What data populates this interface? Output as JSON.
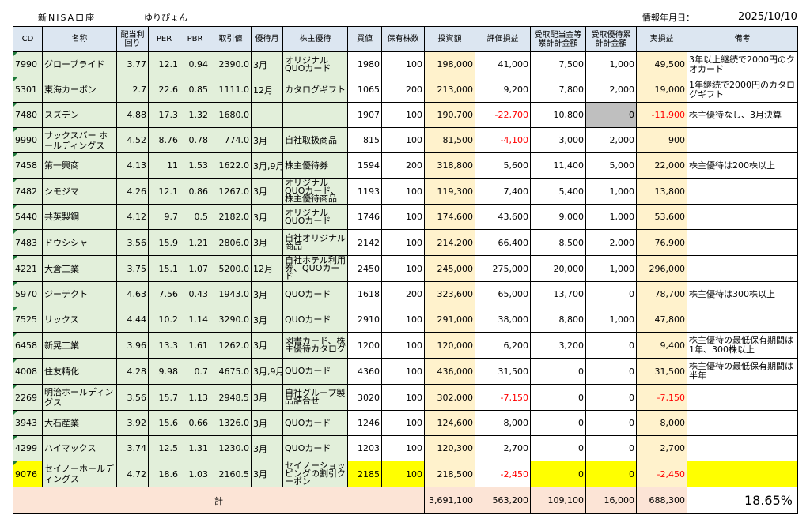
{
  "header": {
    "account": "新NISA口座",
    "user": "ゆりぴょん",
    "info_label": "情報年月日：",
    "date": "2025/10/10"
  },
  "columns": [
    "CD",
    "名称",
    "配当利回り",
    "PER",
    "PBR",
    "取引値",
    "優待月",
    "株主優待",
    "買値",
    "保有株数",
    "投資額",
    "評価損益",
    "受取配当金等累計計金額",
    "受取優待累計計金額",
    "実損益",
    "備考"
  ],
  "rows": [
    {
      "cd": "7990",
      "name": "グローブライド",
      "yield": "3.77",
      "per": "12.1",
      "pbr": "0.94",
      "price": "2390.0",
      "month": "3月",
      "benefit": "オリジナルQUOカード",
      "buy": "1980",
      "shares": "100",
      "invest": "198,000",
      "pl": "41,000",
      "div": "7,500",
      "ben_total": "1,000",
      "real": "49,500",
      "note": "3年以上継続で2000円のクオカード"
    },
    {
      "cd": "5301",
      "name": "東海カーボン",
      "yield": "2.7",
      "per": "22.6",
      "pbr": "0.85",
      "price": "1111.0",
      "month": "12月",
      "benefit": "カタログギフト",
      "buy": "1065",
      "shares": "200",
      "invest": "213,000",
      "pl": "9,200",
      "div": "7,800",
      "ben_total": "2,000",
      "real": "19,000",
      "note": "1年継続で2000円のカタログギフト"
    },
    {
      "cd": "7480",
      "name": "スズデン",
      "yield": "4.88",
      "per": "17.3",
      "pbr": "1.32",
      "price": "1680.0",
      "month": "",
      "benefit": "",
      "buy": "1907",
      "shares": "100",
      "invest": "190,700",
      "pl": "-22,700",
      "div": "10,800",
      "ben_total": "0",
      "real": "-11,900",
      "note": "株主優待なし、3月決算"
    },
    {
      "cd": "9990",
      "name": "サックスバー ホールディングス",
      "yield": "4.52",
      "per": "8.76",
      "pbr": "0.78",
      "price": "774.0",
      "month": "3月",
      "benefit": "自社取扱商品",
      "buy": "815",
      "shares": "100",
      "invest": "81,500",
      "pl": "-4,100",
      "div": "3,000",
      "ben_total": "2,000",
      "real": "900",
      "note": ""
    },
    {
      "cd": "7458",
      "name": "第一興商",
      "yield": "4.13",
      "per": "11",
      "pbr": "1.53",
      "price": "1622.0",
      "month": "3月,9月",
      "benefit": "株主優待券",
      "buy": "1594",
      "shares": "200",
      "invest": "318,800",
      "pl": "5,600",
      "div": "11,400",
      "ben_total": "5,000",
      "real": "22,000",
      "note": "株主優待は200株以上"
    },
    {
      "cd": "7482",
      "name": "シモジマ",
      "yield": "4.26",
      "per": "12.1",
      "pbr": "0.86",
      "price": "1267.0",
      "month": "3月",
      "benefit": "オリジナルQUOカード、株主優待商品",
      "buy": "1193",
      "shares": "100",
      "invest": "119,300",
      "pl": "7,400",
      "div": "5,400",
      "ben_total": "1,000",
      "real": "13,800",
      "note": ""
    },
    {
      "cd": "5440",
      "name": "共英製鋼",
      "yield": "4.12",
      "per": "9.7",
      "pbr": "0.5",
      "price": "2182.0",
      "month": "3月",
      "benefit": "オリジナルQUOカード",
      "buy": "1746",
      "shares": "100",
      "invest": "174,600",
      "pl": "43,600",
      "div": "9,000",
      "ben_total": "1,000",
      "real": "53,600",
      "note": ""
    },
    {
      "cd": "7483",
      "name": "ドウシシャ",
      "yield": "3.56",
      "per": "15.9",
      "pbr": "1.21",
      "price": "2806.0",
      "month": "3月",
      "benefit": "自社オリジナル商品",
      "buy": "2142",
      "shares": "100",
      "invest": "214,200",
      "pl": "66,400",
      "div": "8,500",
      "ben_total": "2,000",
      "real": "76,900",
      "note": ""
    },
    {
      "cd": "4221",
      "name": "大倉工業",
      "yield": "3.75",
      "per": "15.1",
      "pbr": "1.07",
      "price": "5200.0",
      "month": "12月",
      "benefit": "自社ホテル利用券、QUOカード",
      "buy": "2450",
      "shares": "100",
      "invest": "245,000",
      "pl": "275,000",
      "div": "20,000",
      "ben_total": "1,000",
      "real": "296,000",
      "note": ""
    },
    {
      "cd": "5970",
      "name": "ジーテクト",
      "yield": "4.63",
      "per": "7.56",
      "pbr": "0.43",
      "price": "1943.0",
      "month": "3月",
      "benefit": "QUOカード",
      "buy": "1618",
      "shares": "200",
      "invest": "323,600",
      "pl": "65,000",
      "div": "13,700",
      "ben_total": "0",
      "real": "78,700",
      "note": "株主優待は300株以上"
    },
    {
      "cd": "7525",
      "name": "リックス",
      "yield": "4.44",
      "per": "10.2",
      "pbr": "1.14",
      "price": "3290.0",
      "month": "3月",
      "benefit": "QUOカード",
      "buy": "2910",
      "shares": "100",
      "invest": "291,000",
      "pl": "38,000",
      "div": "8,800",
      "ben_total": "1,000",
      "real": "47,800",
      "note": ""
    },
    {
      "cd": "6458",
      "name": "新晃工業",
      "yield": "3.96",
      "per": "13.3",
      "pbr": "1.61",
      "price": "1262.0",
      "month": "3月",
      "benefit": "図書カード、株主優待カタログ",
      "buy": "1200",
      "shares": "100",
      "invest": "120,000",
      "pl": "6,200",
      "div": "3,200",
      "ben_total": "0",
      "real": "9,400",
      "note": "株主優待の最低保有期間は1年、300株以上"
    },
    {
      "cd": "4008",
      "name": "住友精化",
      "yield": "4.28",
      "per": "9.98",
      "pbr": "0.7",
      "price": "4675.0",
      "month": "3月,9月",
      "benefit": "QUOカード",
      "buy": "4360",
      "shares": "100",
      "invest": "436,000",
      "pl": "31,500",
      "div": "0",
      "ben_total": "0",
      "real": "31,500",
      "note": "株主優待の最低保有期間は半年"
    },
    {
      "cd": "2269",
      "name": "明治ホールディングス",
      "yield": "3.56",
      "per": "15.7",
      "pbr": "1.13",
      "price": "2948.5",
      "month": "3月",
      "benefit": "自社グループ製品詰合せ",
      "buy": "3020",
      "shares": "100",
      "invest": "302,000",
      "pl": "-7,150",
      "div": "0",
      "ben_total": "0",
      "real": "-7,150",
      "note": ""
    },
    {
      "cd": "3943",
      "name": "大石産業",
      "yield": "3.92",
      "per": "15.6",
      "pbr": "0.66",
      "price": "1326.0",
      "month": "3月",
      "benefit": "QUOカード",
      "buy": "1246",
      "shares": "100",
      "invest": "124,600",
      "pl": "8,000",
      "div": "0",
      "ben_total": "0",
      "real": "8,000",
      "note": ""
    },
    {
      "cd": "4299",
      "name": "ハイマックス",
      "yield": "3.74",
      "per": "12.5",
      "pbr": "1.31",
      "price": "1230.0",
      "month": "3月",
      "benefit": "QUOカード",
      "buy": "1203",
      "shares": "100",
      "invest": "120,300",
      "pl": "2,700",
      "div": "0",
      "ben_total": "0",
      "real": "2,700",
      "note": ""
    },
    {
      "cd": "9076",
      "name": "セイノーホールディングス",
      "yield": "4.72",
      "per": "18.6",
      "pbr": "1.03",
      "price": "2160.5",
      "month": "3月",
      "benefit": "セイノーショッピングの割引クーポン",
      "buy": "2185",
      "shares": "100",
      "invest": "218,500",
      "pl": "-2,450",
      "div": "0",
      "ben_total": "0",
      "real": "-2,450",
      "note": ""
    }
  ],
  "totals": {
    "label": "計",
    "invest": "3,691,100",
    "pl": "563,200",
    "div": "109,100",
    "ben_total": "16,000",
    "real": "688,300",
    "rate": "18.65%"
  }
}
